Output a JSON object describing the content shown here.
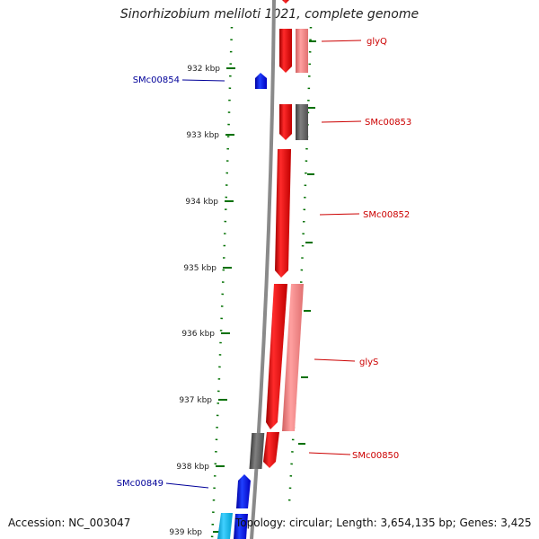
{
  "title": "Sinorhizobium meliloti 1021, complete genome",
  "footer": {
    "accession": "Accession: NC_003047",
    "stats": "Topology: circular; Length: 3,654,135 bp; Genes: 3,425"
  },
  "ruler": {
    "ticks": [
      "932 kbp",
      "933 kbp",
      "934 kbp",
      "935 kbp",
      "936 kbp",
      "937 kbp",
      "938 kbp",
      "939 kbp"
    ]
  },
  "genes": {
    "forward": [
      {
        "label": "glyQ"
      },
      {
        "label": "SMc00853"
      },
      {
        "label": "SMc00852"
      },
      {
        "label": "glyS"
      },
      {
        "label": "SMc00850"
      }
    ],
    "reverse": [
      {
        "label": "SMc00854"
      },
      {
        "label": "SMc00849"
      }
    ]
  },
  "colors": {
    "forward_cds": "#ff0000",
    "forward_light": "#f08080",
    "forward_grey": "#606060",
    "reverse_cds": "#0000ff",
    "reverse_light": "#00bfff",
    "backbone": "#808080",
    "tick": "#007000",
    "label_forward": "#cc0000",
    "label_reverse": "#000099"
  }
}
